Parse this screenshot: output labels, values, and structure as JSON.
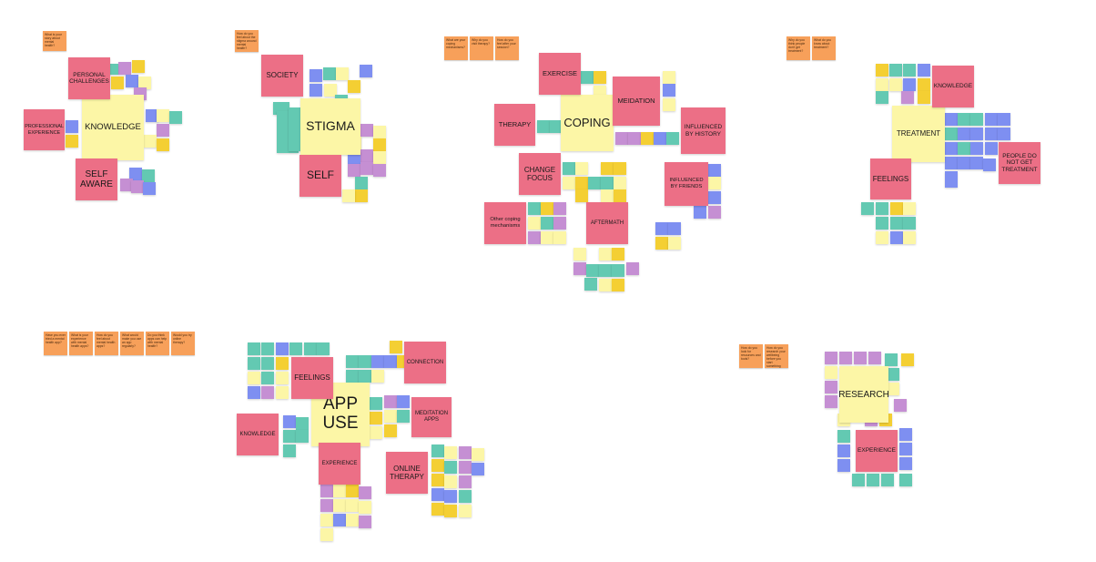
{
  "clusters": [
    {
      "id": "knowledge",
      "main": "KNOWLEDGE",
      "questions": [
        "What is your story about mental health?"
      ],
      "labels": [
        "PERSONAL CHALLENGES",
        "PROFESSIONAL EXPERIENCE",
        "SELF AWARE"
      ]
    },
    {
      "id": "stigma",
      "main": "STIGMA",
      "questions": [
        "How do you feel about the stigma around mental health?"
      ],
      "labels": [
        "SOCIETY",
        "SELF"
      ]
    },
    {
      "id": "coping",
      "main": "COPING",
      "questions": [
        "What are your coping mechanisms?",
        "Why do you visit therapy?",
        "How do you feel after your session?"
      ],
      "labels": [
        "EXERCISE",
        "MEIDATION",
        "THERAPY",
        "INFLUENCED BY HISTORY",
        "CHANGE FOCUS",
        "INFLUENCED BY FRIENDS",
        "Other coping mechanisms",
        "AFTERMATH"
      ]
    },
    {
      "id": "treatment",
      "main": "TREATMENT",
      "questions": [
        "Why do you think people don't get treatment?",
        "What do you know about treatment?"
      ],
      "labels": [
        "KNOWLEDGE",
        "FEELINGS",
        "PEOPLE DO NOT GET TREATMENT"
      ]
    },
    {
      "id": "appuse",
      "main": "APP USE",
      "questions": [
        "Have you ever tried a mental health app?",
        "What is your experience with mental health apps?",
        "How do you feel about mental health apps?",
        "What would make you use an app regularly?",
        "Do you think apps can help with mental health?",
        "Would you try online therapy?"
      ],
      "labels": [
        "FEELINGS",
        "CONNECTION",
        "KNOWLEDGE",
        "MEDITATION APPS",
        "EXPERIENCE",
        "ONLINE THERAPY"
      ]
    },
    {
      "id": "research",
      "main": "RESEARCH",
      "questions": [
        "How do you look for resources and tools?",
        "How do you research your wellbeing before you start something new?"
      ],
      "labels": [
        "EXPERIENCE"
      ]
    }
  ],
  "palette": {
    "background": "#ffffff",
    "yellow_note": "#fcf6a6",
    "pink_note": "#ec6f86",
    "orange_note": "#f7a05a",
    "teal_note": "#63c9b2",
    "blue_note": "#7e8ff1",
    "purple_note": "#c58fd3",
    "gold_note": "#f4cf33"
  }
}
